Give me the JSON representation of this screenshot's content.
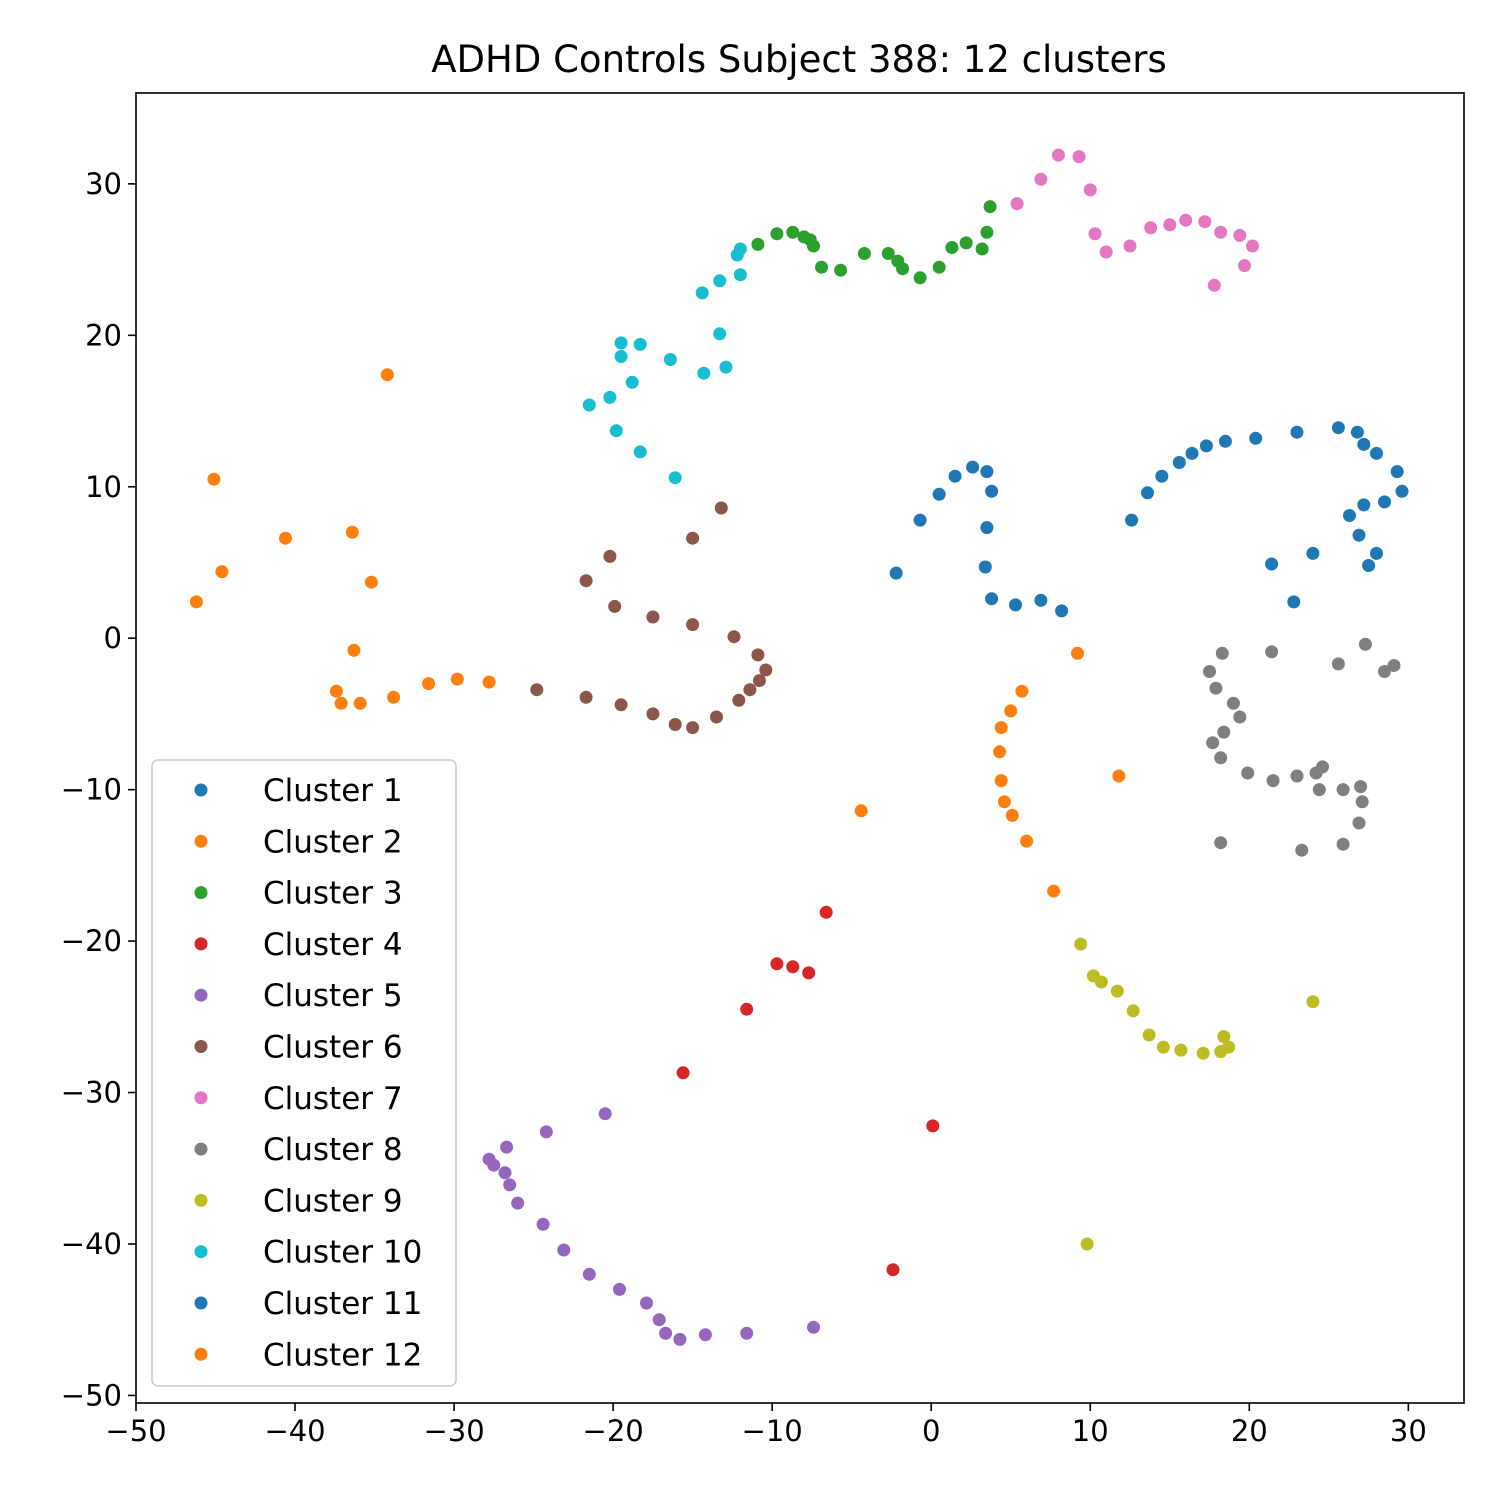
{
  "chart_data": {
    "type": "scatter",
    "title": "ADHD Controls Subject 388: 12 clusters",
    "xlabel": "",
    "ylabel": "",
    "xlim": [
      -50,
      33.5
    ],
    "ylim": [
      -50.5,
      36
    ],
    "xticks": [
      -50,
      -40,
      -30,
      -20,
      -10,
      0,
      10,
      20,
      30
    ],
    "yticks": [
      -50,
      -40,
      -30,
      -20,
      -10,
      0,
      10,
      20,
      30
    ],
    "xtick_labels": [
      "−50",
      "−40",
      "−30",
      "−20",
      "−10",
      "0",
      "10",
      "20",
      "30"
    ],
    "ytick_labels": [
      "−50",
      "−40",
      "−30",
      "−20",
      "−10",
      "0",
      "10",
      "20",
      "30"
    ],
    "grid": false,
    "legend_position": "lower-left",
    "series": [
      {
        "name": "Cluster 1",
        "color": "#1f77b4",
        "points": [
          [
            -2.2,
            4.3
          ],
          [
            -0.7,
            7.8
          ],
          [
            0.5,
            9.5
          ],
          [
            1.5,
            10.7
          ],
          [
            2.6,
            11.3
          ],
          [
            3.5,
            11.0
          ],
          [
            3.8,
            9.7
          ],
          [
            3.5,
            7.3
          ],
          [
            3.4,
            4.7
          ],
          [
            3.8,
            2.6
          ],
          [
            5.3,
            2.2
          ],
          [
            6.9,
            2.5
          ],
          [
            8.2,
            1.8
          ]
        ]
      },
      {
        "name": "Cluster 2",
        "color": "#ff7f0e",
        "points": [
          [
            9.2,
            -1.0
          ],
          [
            5.7,
            -3.5
          ],
          [
            5.0,
            -4.8
          ],
          [
            4.4,
            -5.9
          ],
          [
            4.3,
            -7.5
          ],
          [
            4.4,
            -9.4
          ],
          [
            4.6,
            -10.8
          ],
          [
            5.1,
            -11.7
          ],
          [
            6.0,
            -13.4
          ],
          [
            7.7,
            -16.7
          ],
          [
            11.8,
            -9.1
          ],
          [
            -4.4,
            -11.4
          ]
        ]
      },
      {
        "name": "Cluster 3",
        "color": "#2ca02c",
        "points": [
          [
            -10.9,
            26.0
          ],
          [
            -9.7,
            26.7
          ],
          [
            -8.7,
            26.8
          ],
          [
            -8.0,
            26.5
          ],
          [
            -7.6,
            26.3
          ],
          [
            -7.4,
            25.9
          ],
          [
            -6.9,
            24.5
          ],
          [
            -5.7,
            24.3
          ],
          [
            -4.2,
            25.4
          ],
          [
            -2.7,
            25.4
          ],
          [
            -2.1,
            24.9
          ],
          [
            -1.8,
            24.4
          ],
          [
            -0.7,
            23.8
          ],
          [
            0.5,
            24.5
          ],
          [
            1.3,
            25.8
          ],
          [
            2.2,
            26.1
          ],
          [
            3.2,
            25.7
          ],
          [
            3.5,
            26.8
          ],
          [
            3.7,
            28.5
          ]
        ]
      },
      {
        "name": "Cluster 4",
        "color": "#d62728",
        "points": [
          [
            -6.6,
            -18.1
          ],
          [
            -9.7,
            -21.5
          ],
          [
            -8.7,
            -21.7
          ],
          [
            -7.7,
            -22.1
          ],
          [
            -11.6,
            -24.5
          ],
          [
            -15.6,
            -28.7
          ],
          [
            0.1,
            -32.2
          ],
          [
            -2.4,
            -41.7
          ]
        ]
      },
      {
        "name": "Cluster 5",
        "color": "#9467bd",
        "points": [
          [
            -27.8,
            -34.4
          ],
          [
            -27.5,
            -34.8
          ],
          [
            -26.8,
            -35.3
          ],
          [
            -26.5,
            -36.1
          ],
          [
            -26.0,
            -37.3
          ],
          [
            -26.7,
            -33.6
          ],
          [
            -24.2,
            -32.6
          ],
          [
            -20.5,
            -31.4
          ],
          [
            -24.4,
            -38.7
          ],
          [
            -23.1,
            -40.4
          ],
          [
            -21.5,
            -42.0
          ],
          [
            -19.6,
            -43.0
          ],
          [
            -17.9,
            -43.9
          ],
          [
            -17.1,
            -45.0
          ],
          [
            -16.7,
            -45.9
          ],
          [
            -15.8,
            -46.3
          ],
          [
            -14.2,
            -46.0
          ],
          [
            -11.6,
            -45.9
          ],
          [
            -7.4,
            -45.5
          ]
        ]
      },
      {
        "name": "Cluster 6",
        "color": "#8c564b",
        "points": [
          [
            -13.2,
            8.6
          ],
          [
            -15.0,
            6.6
          ],
          [
            -20.2,
            5.4
          ],
          [
            -21.7,
            3.8
          ],
          [
            -19.9,
            2.1
          ],
          [
            -17.5,
            1.4
          ],
          [
            -15.0,
            0.9
          ],
          [
            -12.4,
            0.1
          ],
          [
            -10.9,
            -1.1
          ],
          [
            -10.4,
            -2.1
          ],
          [
            -10.8,
            -2.8
          ],
          [
            -11.4,
            -3.4
          ],
          [
            -12.1,
            -4.1
          ],
          [
            -13.5,
            -5.2
          ],
          [
            -15.0,
            -5.9
          ],
          [
            -16.1,
            -5.7
          ],
          [
            -17.5,
            -5.0
          ],
          [
            -19.5,
            -4.4
          ],
          [
            -21.7,
            -3.9
          ],
          [
            -24.8,
            -3.4
          ]
        ]
      },
      {
        "name": "Cluster 7",
        "color": "#e377c2",
        "points": [
          [
            8.0,
            31.9
          ],
          [
            9.3,
            31.8
          ],
          [
            6.9,
            30.3
          ],
          [
            10.0,
            29.6
          ],
          [
            5.4,
            28.7
          ],
          [
            10.3,
            26.7
          ],
          [
            11.0,
            25.5
          ],
          [
            12.5,
            25.9
          ],
          [
            13.8,
            27.1
          ],
          [
            15.0,
            27.3
          ],
          [
            16.0,
            27.6
          ],
          [
            17.2,
            27.5
          ],
          [
            18.2,
            26.8
          ],
          [
            19.4,
            26.6
          ],
          [
            20.2,
            25.9
          ],
          [
            19.7,
            24.6
          ],
          [
            17.8,
            23.3
          ]
        ]
      },
      {
        "name": "Cluster 8",
        "color": "#7f7f7f",
        "points": [
          [
            18.3,
            -1.0
          ],
          [
            21.4,
            -0.9
          ],
          [
            25.6,
            -1.7
          ],
          [
            27.3,
            -0.4
          ],
          [
            29.1,
            -1.8
          ],
          [
            28.5,
            -2.2
          ],
          [
            17.5,
            -2.2
          ],
          [
            17.9,
            -3.3
          ],
          [
            19.0,
            -4.3
          ],
          [
            19.4,
            -5.2
          ],
          [
            18.4,
            -6.2
          ],
          [
            17.7,
            -6.9
          ],
          [
            18.2,
            -7.9
          ],
          [
            19.9,
            -8.9
          ],
          [
            21.5,
            -9.4
          ],
          [
            23.0,
            -9.1
          ],
          [
            24.2,
            -8.9
          ],
          [
            24.6,
            -8.5
          ],
          [
            24.4,
            -10.0
          ],
          [
            25.9,
            -10.0
          ],
          [
            27.0,
            -9.8
          ],
          [
            27.1,
            -10.8
          ],
          [
            26.9,
            -12.2
          ],
          [
            18.2,
            -13.5
          ],
          [
            23.3,
            -14.0
          ],
          [
            25.9,
            -13.6
          ]
        ]
      },
      {
        "name": "Cluster 9",
        "color": "#bcbd22",
        "points": [
          [
            9.4,
            -20.2
          ],
          [
            10.2,
            -22.3
          ],
          [
            10.7,
            -22.7
          ],
          [
            11.7,
            -23.3
          ],
          [
            12.7,
            -24.6
          ],
          [
            13.7,
            -26.2
          ],
          [
            14.6,
            -27.0
          ],
          [
            15.7,
            -27.2
          ],
          [
            17.1,
            -27.4
          ],
          [
            18.2,
            -27.3
          ],
          [
            18.7,
            -27.0
          ],
          [
            18.4,
            -26.3
          ],
          [
            24.0,
            -24.0
          ],
          [
            9.8,
            -40.0
          ]
        ]
      },
      {
        "name": "Cluster 10",
        "color": "#17becf",
        "points": [
          [
            -12.0,
            25.7
          ],
          [
            -12.2,
            25.3
          ],
          [
            -12.0,
            24.0
          ],
          [
            -13.3,
            23.6
          ],
          [
            -14.4,
            22.8
          ],
          [
            -13.3,
            20.1
          ],
          [
            -12.9,
            17.9
          ],
          [
            -14.3,
            17.5
          ],
          [
            -16.4,
            18.4
          ],
          [
            -18.3,
            19.4
          ],
          [
            -19.5,
            19.5
          ],
          [
            -19.5,
            18.6
          ],
          [
            -18.8,
            16.9
          ],
          [
            -21.5,
            15.4
          ],
          [
            -20.2,
            15.9
          ],
          [
            -19.8,
            13.7
          ],
          [
            -18.3,
            12.3
          ],
          [
            -16.1,
            10.6
          ]
        ]
      },
      {
        "name": "Cluster 11",
        "color": "#1f77b4",
        "points": [
          [
            12.6,
            7.8
          ],
          [
            13.6,
            9.6
          ],
          [
            14.5,
            10.7
          ],
          [
            15.6,
            11.6
          ],
          [
            16.4,
            12.2
          ],
          [
            17.3,
            12.7
          ],
          [
            18.5,
            13.0
          ],
          [
            20.4,
            13.2
          ],
          [
            23.0,
            13.6
          ],
          [
            25.6,
            13.9
          ],
          [
            26.8,
            13.6
          ],
          [
            27.2,
            12.8
          ],
          [
            28.0,
            12.2
          ],
          [
            29.3,
            11.0
          ],
          [
            29.6,
            9.7
          ],
          [
            28.5,
            9.0
          ],
          [
            27.2,
            8.8
          ],
          [
            26.3,
            8.1
          ],
          [
            26.9,
            6.8
          ],
          [
            28.0,
            5.6
          ],
          [
            27.5,
            4.8
          ],
          [
            24.0,
            5.6
          ],
          [
            21.4,
            4.9
          ],
          [
            22.8,
            2.4
          ]
        ]
      },
      {
        "name": "Cluster 12",
        "color": "#ff7f0e",
        "points": [
          [
            -34.2,
            17.4
          ],
          [
            -45.1,
            10.5
          ],
          [
            -40.6,
            6.6
          ],
          [
            -36.4,
            7.0
          ],
          [
            -44.6,
            4.4
          ],
          [
            -35.2,
            3.7
          ],
          [
            -46.2,
            2.4
          ],
          [
            -36.3,
            -0.8
          ],
          [
            -37.4,
            -3.5
          ],
          [
            -37.1,
            -4.3
          ],
          [
            -35.9,
            -4.3
          ],
          [
            -33.8,
            -3.9
          ],
          [
            -31.6,
            -3.0
          ],
          [
            -29.8,
            -2.7
          ],
          [
            -27.8,
            -2.9
          ]
        ]
      }
    ]
  }
}
